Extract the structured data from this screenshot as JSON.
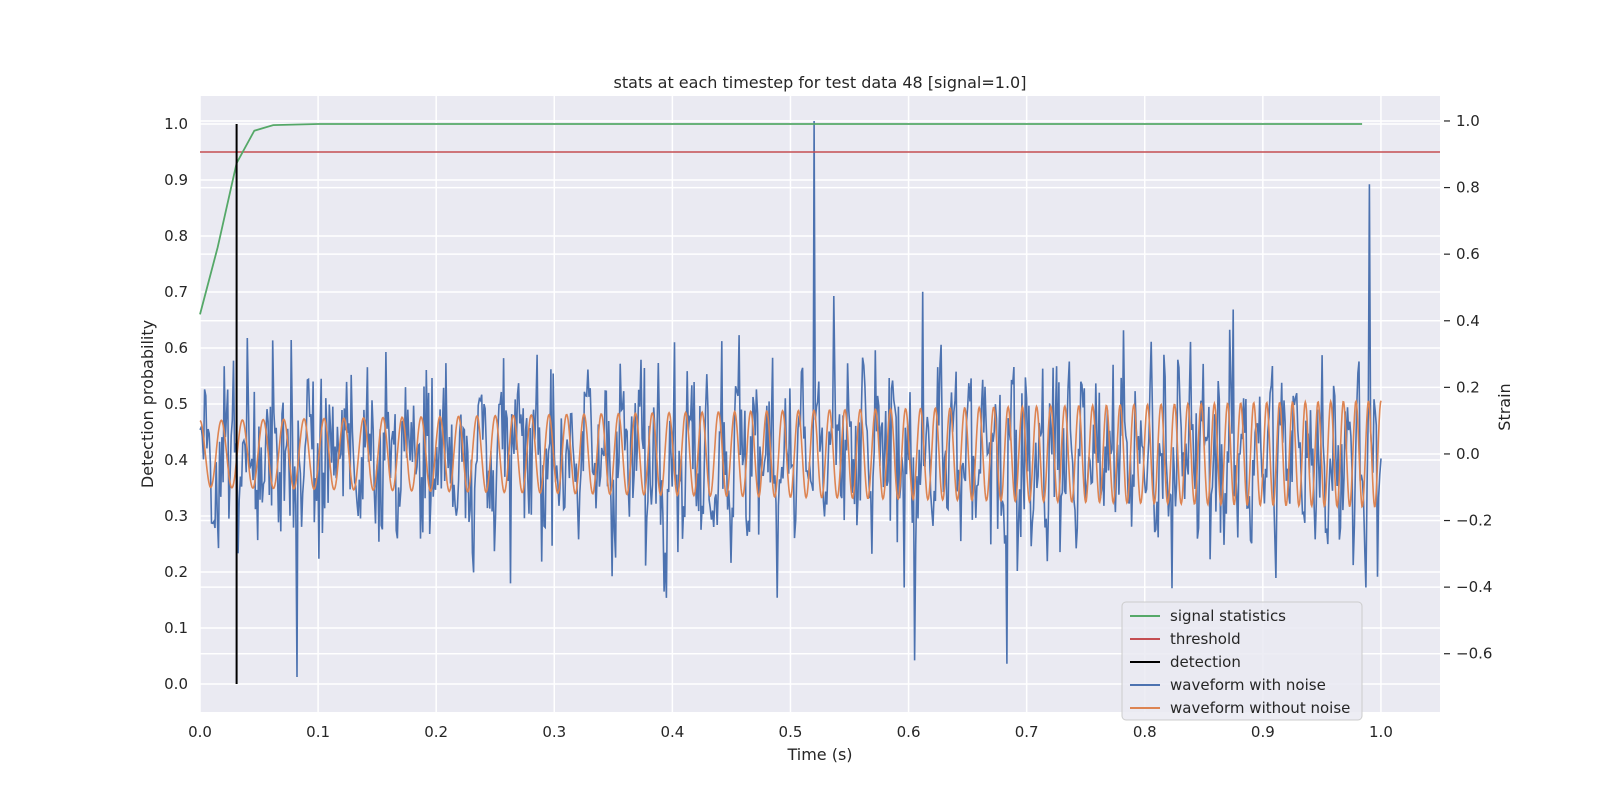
{
  "chart_data": {
    "type": "line",
    "title": "stats at each timestep for test data 48 [signal=1.0]",
    "xlabel": "Time (s)",
    "ylabel": "Detection probability",
    "y2label": "Strain",
    "xlim": [
      0.0,
      1.05
    ],
    "ylim": [
      -0.05,
      1.05
    ],
    "y2lim": [
      -0.775,
      1.075
    ],
    "x_ticks": [
      0.0,
      0.1,
      0.2,
      0.3,
      0.4,
      0.5,
      0.6,
      0.7,
      0.8,
      0.9,
      1.0
    ],
    "x_tick_labels": [
      "0.0",
      "0.1",
      "0.2",
      "0.3",
      "0.4",
      "0.5",
      "0.6",
      "0.7",
      "0.8",
      "0.9",
      "1.0"
    ],
    "y_ticks": [
      0.0,
      0.1,
      0.2,
      0.3,
      0.4,
      0.5,
      0.6,
      0.7,
      0.8,
      0.9,
      1.0
    ],
    "y_tick_labels": [
      "0.0",
      "0.1",
      "0.2",
      "0.3",
      "0.4",
      "0.5",
      "0.6",
      "0.7",
      "0.8",
      "0.9",
      "1.0"
    ],
    "y2_ticks": [
      -0.6,
      -0.4,
      -0.2,
      0.0,
      0.2,
      0.4,
      0.6,
      0.8,
      1.0
    ],
    "y2_tick_labels": [
      "−0.6",
      "−0.4",
      "−0.2",
      "0.0",
      "0.2",
      "0.4",
      "0.6",
      "0.8",
      "1.0"
    ],
    "grid": true,
    "legend_position": "bottom-right",
    "series": [
      {
        "name": "signal statistics",
        "axis": "left",
        "color": "#55a868",
        "x": [
          0.0,
          0.015,
          0.031,
          0.046,
          0.062,
          0.1,
          0.2,
          0.3,
          0.4,
          0.5,
          0.6,
          0.7,
          0.8,
          0.9,
          0.984
        ],
        "y": [
          0.66,
          0.78,
          0.93,
          0.988,
          0.998,
          1.0,
          1.0,
          1.0,
          1.0,
          1.0,
          1.0,
          1.0,
          1.0,
          1.0,
          1.0
        ]
      },
      {
        "name": "threshold",
        "axis": "left",
        "color": "#c44e52",
        "x": [
          0.0,
          1.05
        ],
        "y": [
          0.95,
          0.95
        ]
      },
      {
        "name": "detection",
        "axis": "left",
        "color": "#000000",
        "x": [
          0.031,
          0.031
        ],
        "y": [
          0.0,
          1.0
        ]
      },
      {
        "name": "waveform with noise",
        "axis": "right",
        "color": "#4c72b0",
        "x_start": 0.0,
        "x_end": 1.0,
        "approx_std": 0.2,
        "approx_range": [
          -0.7,
          1.0
        ],
        "y_peaks": [
          {
            "x": 0.52,
            "y": 1.0
          },
          {
            "x": 0.99,
            "y": 0.81
          },
          {
            "x": 0.082,
            "y": -0.67
          },
          {
            "x": 0.605,
            "y": -0.62
          },
          {
            "x": 0.683,
            "y": -0.63
          }
        ]
      },
      {
        "name": "waveform without noise",
        "axis": "right",
        "color": "#dd8452",
        "x_start": 0.0,
        "x_end": 1.0,
        "approx_amplitude_start": 0.1,
        "approx_amplitude_end": 0.16,
        "approx_frequency_start_hz": 55,
        "approx_frequency_end_hz": 75
      }
    ]
  }
}
